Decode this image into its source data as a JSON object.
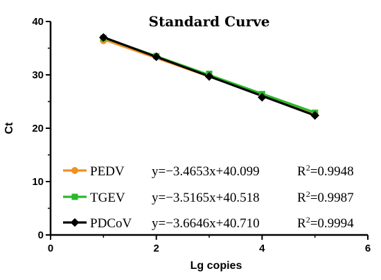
{
  "chart_data": {
    "type": "scatter",
    "title": "Standard Curve",
    "xlabel": "Lg copies",
    "ylabel": "Ct",
    "xlim": [
      0,
      6
    ],
    "ylim": [
      0,
      40
    ],
    "x_ticks": [
      "0",
      "2",
      "4",
      "6"
    ],
    "y_ticks": [
      "0",
      "10",
      "20",
      "30",
      "40"
    ],
    "grid": false,
    "legend_position": "bottom-left",
    "series": [
      {
        "name": "PEDV",
        "color": "#f0901e",
        "marker": "circle",
        "x": [
          1,
          2,
          3,
          4,
          5
        ],
        "y": [
          36.4,
          33.4,
          29.9,
          26.1,
          22.8
        ],
        "fit": {
          "slope": -3.4653,
          "intercept": 40.099
        },
        "equation": "y=−3.4653x+40.099",
        "r2_label": "R",
        "r2_sup": "2",
        "r2_value": "=0.9948"
      },
      {
        "name": "TGEV",
        "color": "#2ab82a",
        "marker": "square",
        "x": [
          1,
          2,
          3,
          4,
          5
        ],
        "y": [
          36.9,
          33.5,
          30.2,
          26.4,
          22.9
        ],
        "fit": {
          "slope": -3.5165,
          "intercept": 40.518
        },
        "equation": "y=−3.5165x+40.518",
        "r2_label": "R",
        "r2_sup": "2",
        "r2_value": "=0.9987"
      },
      {
        "name": "PDCoV",
        "color": "#000000",
        "marker": "diamond",
        "x": [
          1,
          2,
          3,
          4,
          5
        ],
        "y": [
          37.0,
          33.4,
          29.7,
          25.8,
          22.4
        ],
        "fit": {
          "slope": -3.6646,
          "intercept": 40.71
        },
        "equation": "y=−3.6646x+40.710",
        "r2_label": "R",
        "r2_sup": "2",
        "r2_value": "=0.9994"
      }
    ]
  }
}
